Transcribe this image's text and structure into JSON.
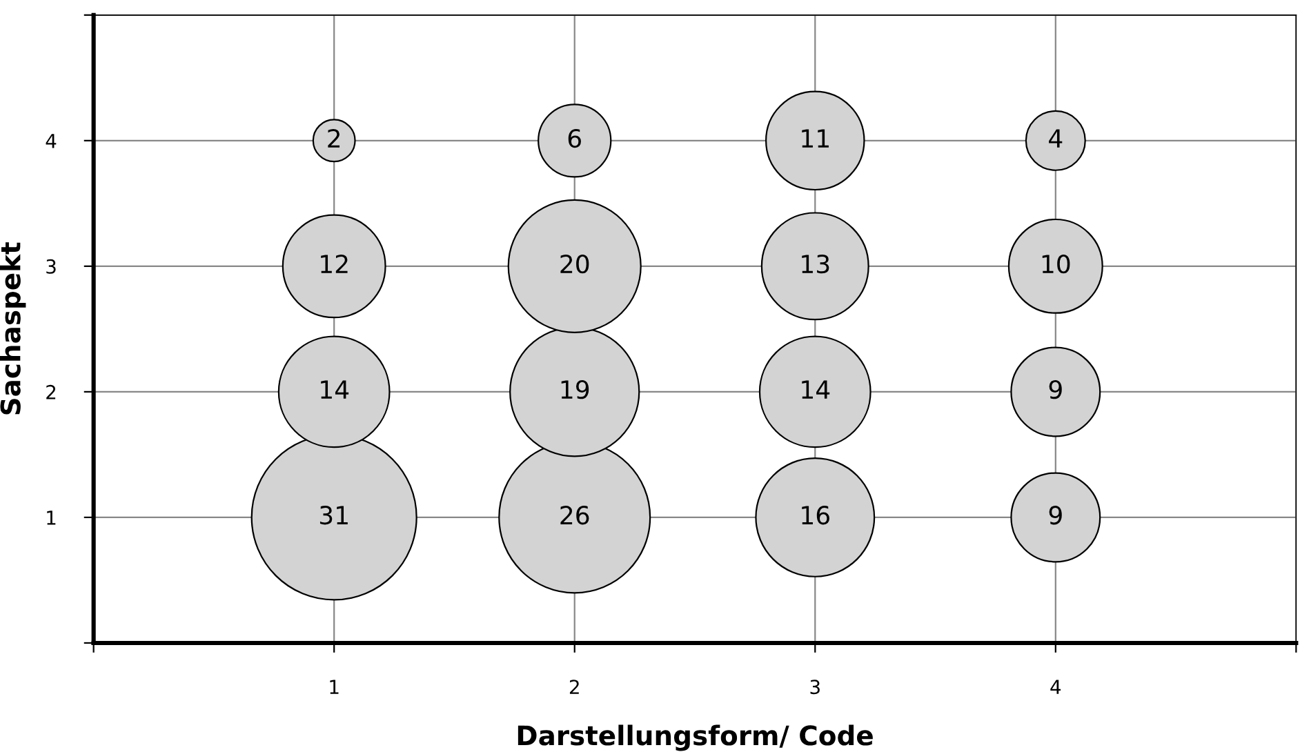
{
  "chart_data": {
    "type": "bubble",
    "xlabel": "Darstellungsform/ Code",
    "ylabel": "Sachaspekt",
    "xlim": [
      0,
      5
    ],
    "ylim": [
      0,
      5
    ],
    "xticks": [
      {
        "value": 0,
        "label": null
      },
      1,
      2,
      3,
      4,
      {
        "value": 5,
        "label": null
      }
    ],
    "yticks": [
      {
        "value": 0,
        "label": null
      },
      1,
      2,
      3,
      4,
      {
        "value": 5,
        "label": null
      }
    ],
    "grid": true,
    "legend": false,
    "marker": "circle",
    "series": [
      {
        "color": "#d3d3d3",
        "x": [
          1,
          1,
          1,
          1,
          2,
          2,
          2,
          2,
          3,
          3,
          3,
          3,
          4,
          4,
          4,
          4
        ],
        "values": [
          1,
          2,
          3,
          4,
          1,
          2,
          3,
          4,
          1,
          2,
          3,
          4,
          1,
          2,
          3,
          4
        ],
        "sizes": [
          31,
          14,
          12,
          2,
          26,
          19,
          20,
          6,
          16,
          14,
          13,
          11,
          9,
          9,
          10,
          4
        ],
        "value_labels": [
          "31",
          "14",
          "12",
          "2",
          "26",
          "19",
          "20",
          "6",
          "16",
          "14",
          "13",
          "11",
          "9",
          "9",
          "10",
          "4"
        ]
      }
    ]
  }
}
